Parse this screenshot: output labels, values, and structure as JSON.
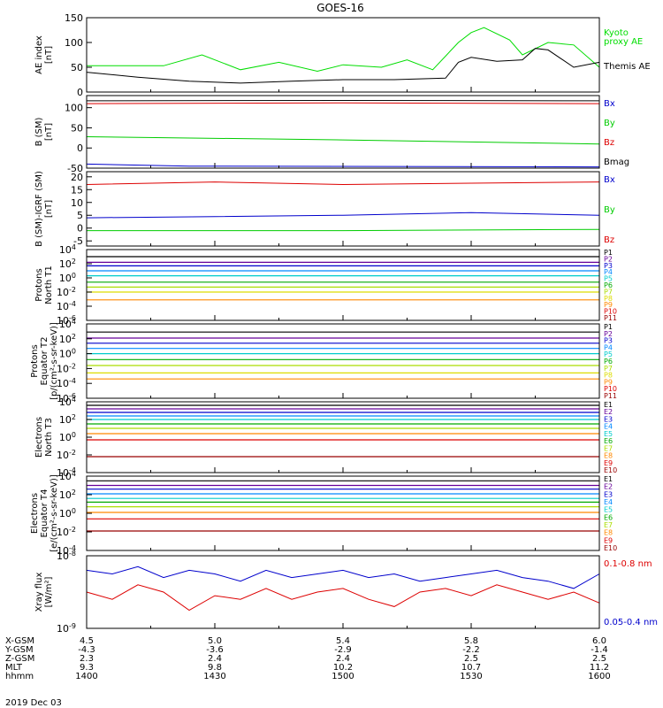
{
  "chart_data": {
    "type": "line",
    "title": "GOES-16",
    "footer_date": "2019 Dec 03",
    "hours": [
      14.0,
      16.0
    ],
    "footer": {
      "row_labels": [
        "X-GSM",
        "Y-GSM",
        "Z-GSM",
        "MLT",
        "hhmm"
      ],
      "columns": [
        [
          "4.5",
          "-4.3",
          "2.3",
          "9.3",
          "1400"
        ],
        [
          "5.0",
          "-3.6",
          "2.4",
          "9.8",
          "1430"
        ],
        [
          "5.4",
          "-2.9",
          "2.4",
          "10.2",
          "1500"
        ],
        [
          "5.8",
          "-2.2",
          "2.5",
          "10.7",
          "1530"
        ],
        [
          "6.0",
          "-1.4",
          "2.5",
          "11.2",
          "1600"
        ]
      ]
    },
    "panels": [
      {
        "id": "ae",
        "ylabel": [
          "AE index",
          "[nT]"
        ],
        "ylim": [
          0,
          150
        ],
        "ticks": [
          "0",
          "50",
          "100",
          "150"
        ],
        "tick_values": [
          0,
          50,
          100,
          150
        ],
        "legend": [
          {
            "name": "Kyoto",
            "color": "#00dd00"
          },
          {
            "name": "proxy AE",
            "color": "#00dd00"
          },
          {
            "name": "Themis AE",
            "color": "#000000"
          }
        ],
        "series": [
          {
            "name": "Kyoto proxy AE",
            "color": "#00dd00",
            "x": [
              14.0,
              14.3,
              14.45,
              14.6,
              14.75,
              14.9,
              15.0,
              15.15,
              15.25,
              15.35,
              15.45,
              15.5,
              15.55,
              15.65,
              15.7,
              15.8,
              15.9,
              16.0
            ],
            "y": [
              53,
              53,
              75,
              45,
              60,
              42,
              55,
              50,
              65,
              45,
              100,
              120,
              130,
              105,
              75,
              100,
              95,
              50
            ]
          },
          {
            "name": "Themis AE",
            "color": "#000000",
            "x": [
              14.0,
              14.2,
              14.4,
              14.6,
              14.8,
              15.0,
              15.2,
              15.4,
              15.45,
              15.5,
              15.6,
              15.7,
              15.75,
              15.8,
              15.9,
              16.0
            ],
            "y": [
              40,
              30,
              22,
              18,
              22,
              25,
              25,
              28,
              60,
              70,
              62,
              65,
              88,
              85,
              50,
              60
            ]
          }
        ]
      },
      {
        "id": "bsm",
        "ylabel": [
          "B (SM)",
          "[nT]"
        ],
        "ylim": [
          -50,
          130
        ],
        "ticks": [
          "-50",
          "0",
          "50",
          "100"
        ],
        "tick_values": [
          -50,
          0,
          50,
          100
        ],
        "legend": [
          {
            "name": "Bx",
            "color": "#0000cc"
          },
          {
            "name": "By",
            "color": "#00cc00"
          },
          {
            "name": "Bz",
            "color": "#dd0000"
          },
          {
            "name": "Bmag",
            "color": "#000000"
          }
        ],
        "series": [
          {
            "name": "Bx",
            "color": "#0000cc",
            "x": [
              14.0,
              14.4,
              16.0
            ],
            "y": [
              -40,
              -45,
              -47
            ]
          },
          {
            "name": "By",
            "color": "#00cc00",
            "x": [
              14.0,
              15.0,
              16.0
            ],
            "y": [
              28,
              20,
              10
            ]
          },
          {
            "name": "Bz",
            "color": "#dd0000",
            "x": [
              14.0,
              15.0,
              16.0
            ],
            "y": [
              110,
              112,
              110
            ]
          },
          {
            "name": "Bmag",
            "color": "#000000",
            "x": [
              14.0,
              15.0,
              16.0
            ],
            "y": [
              117,
              118,
              117
            ]
          }
        ]
      },
      {
        "id": "bdiff",
        "ylabel": [
          "B (SM)-IGRF (SM)",
          "[nT]"
        ],
        "ylim": [
          -7,
          22
        ],
        "ticks": [
          "-5",
          "0",
          "5",
          "10",
          "15",
          "20"
        ],
        "tick_values": [
          -5,
          0,
          5,
          10,
          15,
          20
        ],
        "legend": [
          {
            "name": "Bx",
            "color": "#0000cc"
          },
          {
            "name": "By",
            "color": "#00cc00"
          },
          {
            "name": "Bz",
            "color": "#dd0000"
          }
        ],
        "series": [
          {
            "name": "Bx",
            "color": "#0000cc",
            "x": [
              14.0,
              14.5,
              15.0,
              15.5,
              16.0
            ],
            "y": [
              4,
              4.5,
              5,
              6,
              5
            ]
          },
          {
            "name": "By",
            "color": "#00cc00",
            "x": [
              14.0,
              15.0,
              16.0
            ],
            "y": [
              -1,
              -1,
              -0.5
            ]
          },
          {
            "name": "Bz",
            "color": "#dd0000",
            "x": [
              14.0,
              14.5,
              15.0,
              15.5,
              16.0
            ],
            "y": [
              17,
              18,
              17,
              17.5,
              18
            ]
          }
        ]
      },
      {
        "id": "pn",
        "ylabel": [
          "Protons",
          "North T1"
        ],
        "log": true,
        "ylim": [
          -6,
          4
        ],
        "ticks": [
          "10^4",
          "10^2",
          "10^0",
          "10^-2",
          "10^-4",
          "10^-6"
        ],
        "tick_values": [
          4,
          2,
          0,
          -2,
          -4,
          -6
        ],
        "legend": [
          {
            "name": "P1",
            "color": "#000000"
          },
          {
            "name": "P2",
            "color": "#660099"
          },
          {
            "name": "P3",
            "color": "#0000cc"
          },
          {
            "name": "P4",
            "color": "#0088ff"
          },
          {
            "name": "P5",
            "color": "#00cccc"
          },
          {
            "name": "P6",
            "color": "#00aa00"
          },
          {
            "name": "P7",
            "color": "#aadd00"
          },
          {
            "name": "P8",
            "color": "#dddd00"
          },
          {
            "name": "P9",
            "color": "#ff8800"
          },
          {
            "name": "P10",
            "color": "#dd0000"
          },
          {
            "name": "P11",
            "color": "#990000"
          }
        ],
        "levels": [
          3.0,
          2.2,
          1.7,
          1.0,
          0.3,
          -0.6,
          -1.3,
          -2.0,
          -3.1
        ]
      },
      {
        "id": "pe",
        "ylabel": [
          "Protons",
          "Equator T2",
          "[p/(cm²-s-sr-keV)]"
        ],
        "log": true,
        "ylim": [
          -6,
          4
        ],
        "ticks": [
          "10^4",
          "10^2",
          "10^0",
          "10^-2",
          "10^-4",
          "10^-6"
        ],
        "tick_values": [
          4,
          2,
          0,
          -2,
          -4,
          -6
        ],
        "legend": [
          {
            "name": "P1",
            "color": "#000000"
          },
          {
            "name": "P2",
            "color": "#660099"
          },
          {
            "name": "P3",
            "color": "#0000cc"
          },
          {
            "name": "P4",
            "color": "#0088ff"
          },
          {
            "name": "P5",
            "color": "#00cccc"
          },
          {
            "name": "P6",
            "color": "#00aa00"
          },
          {
            "name": "P7",
            "color": "#aadd00"
          },
          {
            "name": "P8",
            "color": "#dddd00"
          },
          {
            "name": "P9",
            "color": "#ff8800"
          },
          {
            "name": "P10",
            "color": "#dd0000"
          },
          {
            "name": "P11",
            "color": "#990000"
          }
        ],
        "levels": [
          2.9,
          2.1,
          1.4,
          0.7,
          0.0,
          -0.8,
          -1.6,
          -2.6,
          -3.4
        ]
      },
      {
        "id": "en",
        "ylabel": [
          "Electrons",
          "North T3"
        ],
        "log": true,
        "ylim": [
          -4,
          4
        ],
        "ticks": [
          "10^4",
          "10^2",
          "10^0",
          "10^-2",
          "10^-4"
        ],
        "tick_values": [
          4,
          2,
          0,
          -2,
          -4
        ],
        "legend": [
          {
            "name": "E1",
            "color": "#000000"
          },
          {
            "name": "E2",
            "color": "#660099"
          },
          {
            "name": "E3",
            "color": "#0000cc"
          },
          {
            "name": "E4",
            "color": "#0088ff"
          },
          {
            "name": "E5",
            "color": "#00cccc"
          },
          {
            "name": "E6",
            "color": "#00aa00"
          },
          {
            "name": "E7",
            "color": "#aadd00"
          },
          {
            "name": "E8",
            "color": "#ff8800"
          },
          {
            "name": "E9",
            "color": "#dd0000"
          },
          {
            "name": "E10",
            "color": "#990000"
          }
        ],
        "levels": [
          3.6,
          3.2,
          2.8,
          2.4,
          2.0,
          1.5,
          1.0,
          0.4,
          -0.3,
          -2.2
        ]
      },
      {
        "id": "ee",
        "ylabel": [
          "Electrons",
          "Equator T4",
          "[e/(cm²-s-sr-keV)]"
        ],
        "log": true,
        "ylim": [
          -4,
          4
        ],
        "ticks": [
          "10^4",
          "10^2",
          "10^0",
          "10^-2",
          "10^-4"
        ],
        "tick_values": [
          4,
          2,
          0,
          -2,
          -4
        ],
        "legend": [
          {
            "name": "E1",
            "color": "#000000"
          },
          {
            "name": "E2",
            "color": "#660099"
          },
          {
            "name": "E3",
            "color": "#0000cc"
          },
          {
            "name": "E4",
            "color": "#0088ff"
          },
          {
            "name": "E5",
            "color": "#00cccc"
          },
          {
            "name": "E6",
            "color": "#00aa00"
          },
          {
            "name": "E7",
            "color": "#aadd00"
          },
          {
            "name": "E8",
            "color": "#ff8800"
          },
          {
            "name": "E9",
            "color": "#dd0000"
          },
          {
            "name": "E10",
            "color": "#990000"
          }
        ],
        "levels": [
          3.5,
          3.0,
          2.6,
          2.1,
          1.6,
          1.2,
          0.7,
          0.1,
          -0.6,
          -1.9
        ]
      },
      {
        "id": "xray",
        "ylabel": [
          "Xray flux",
          "[W/m²]"
        ],
        "log": true,
        "ylim": [
          -9,
          -8
        ],
        "ticks": [
          "10^-8",
          "10^-9"
        ],
        "tick_values": [
          -8,
          -9
        ],
        "legend": [
          {
            "name": "0.1-0.8 nm",
            "color": "#dd0000"
          },
          {
            "name": "0.05-0.4 nm",
            "color": "#0000cc"
          }
        ],
        "series": [
          {
            "name": "0.05-0.4 nm",
            "color": "#0000cc",
            "x": [
              14.0,
              14.1,
              14.2,
              14.3,
              14.4,
              14.5,
              14.6,
              14.7,
              14.8,
              14.9,
              15.0,
              15.1,
              15.2,
              15.3,
              15.4,
              15.5,
              15.6,
              15.7,
              15.8,
              15.9,
              16.0
            ],
            "y": [
              -8.2,
              -8.25,
              -8.15,
              -8.3,
              -8.2,
              -8.25,
              -8.35,
              -8.2,
              -8.3,
              -8.25,
              -8.2,
              -8.3,
              -8.25,
              -8.35,
              -8.3,
              -8.25,
              -8.2,
              -8.3,
              -8.35,
              -8.45,
              -8.25
            ]
          },
          {
            "name": "0.1-0.8 nm",
            "color": "#dd0000",
            "x": [
              14.0,
              14.1,
              14.2,
              14.3,
              14.4,
              14.5,
              14.6,
              14.7,
              14.8,
              14.9,
              15.0,
              15.1,
              15.2,
              15.3,
              15.4,
              15.5,
              15.6,
              15.7,
              15.8,
              15.9,
              16.0
            ],
            "y": [
              -8.5,
              -8.6,
              -8.4,
              -8.5,
              -8.75,
              -8.55,
              -8.6,
              -8.45,
              -8.6,
              -8.5,
              -8.45,
              -8.6,
              -8.7,
              -8.5,
              -8.45,
              -8.55,
              -8.4,
              -8.5,
              -8.6,
              -8.5,
              -8.65
            ]
          }
        ]
      }
    ]
  }
}
